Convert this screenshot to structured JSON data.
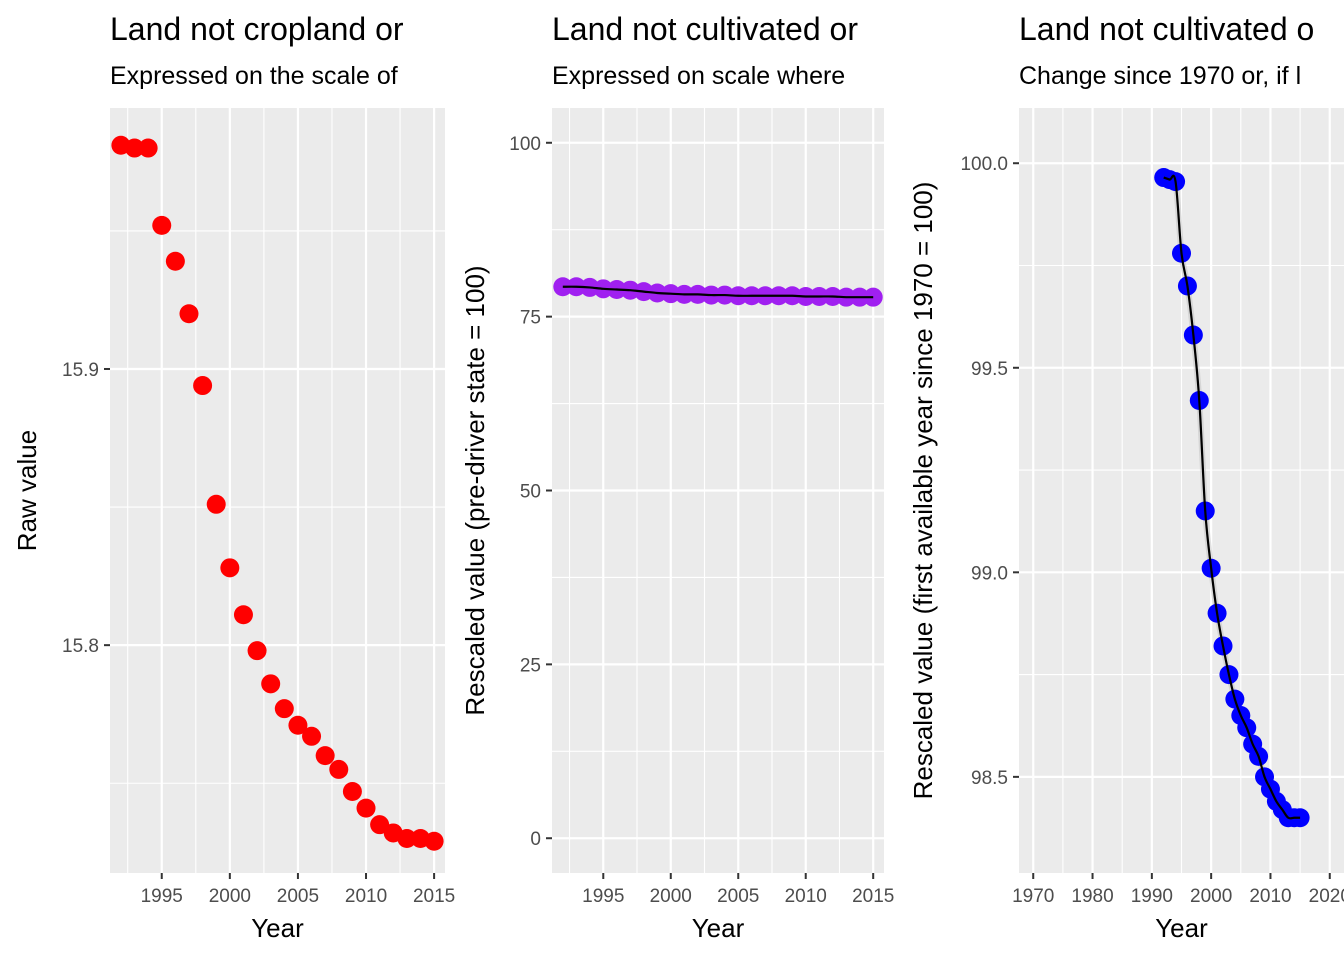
{
  "colors": {
    "panel_1_points": "#ff0000",
    "panel_2_points": "#a020f0",
    "panel_3_points": "#0000ff",
    "trend_line": "#000000",
    "ribbon": "#bdbdbd",
    "panel_background": "#ebebeb",
    "gridline": "#ffffff"
  },
  "chart_data": [
    {
      "type": "scatter",
      "title": "Land not cropland or",
      "subtitle": "Expressed on the scale of",
      "xlabel": "Year",
      "ylabel": "Raw value",
      "xlim": [
        1991.2,
        2015.8
      ],
      "ylim": [
        15.7175,
        15.9945
      ],
      "x_ticks": [
        1995,
        2000,
        2005,
        2010,
        2015
      ],
      "x_tick_labels": [
        "1995",
        "2000",
        "2005",
        "2010",
        "2015"
      ],
      "y_ticks": [
        15.8,
        15.9
      ],
      "y_tick_labels": [
        "15.8",
        "15.9"
      ],
      "grid": true,
      "trend_line": false,
      "series": [
        {
          "x": [
            1992,
            1993,
            1994,
            1995,
            1996,
            1997,
            1998,
            1999,
            2000,
            2001,
            2002,
            2003,
            2004,
            2005,
            2006,
            2007,
            2008,
            2009,
            2010,
            2011,
            2012,
            2013,
            2014,
            2015
          ],
          "y": [
            15.981,
            15.98,
            15.98,
            15.952,
            15.939,
            15.92,
            15.894,
            15.851,
            15.828,
            15.811,
            15.798,
            15.786,
            15.777,
            15.771,
            15.767,
            15.76,
            15.755,
            15.747,
            15.741,
            15.735,
            15.732,
            15.73,
            15.73,
            15.729
          ]
        }
      ]
    },
    {
      "type": "scatter",
      "title": "Land not cultivated or",
      "subtitle": "Expressed on scale where",
      "xlabel": "Year",
      "ylabel": "Rescaled value (pre-driver state = 100)",
      "xlim": [
        1991.2,
        2015.8
      ],
      "ylim": [
        -5,
        105
      ],
      "x_ticks": [
        1995,
        2000,
        2005,
        2010,
        2015
      ],
      "x_tick_labels": [
        "1995",
        "2000",
        "2005",
        "2010",
        "2015"
      ],
      "y_ticks": [
        0,
        25,
        50,
        75,
        100
      ],
      "y_tick_labels": [
        "0",
        "25",
        "50",
        "75",
        "100"
      ],
      "grid": true,
      "trend_line": true,
      "series": [
        {
          "x": [
            1992,
            1993,
            1994,
            1995,
            1996,
            1997,
            1998,
            1999,
            2000,
            2001,
            2002,
            2003,
            2004,
            2005,
            2006,
            2007,
            2008,
            2009,
            2010,
            2011,
            2012,
            2013,
            2014,
            2015
          ],
          "y": [
            79.3,
            79.3,
            79.2,
            79.0,
            78.9,
            78.8,
            78.6,
            78.4,
            78.3,
            78.2,
            78.2,
            78.1,
            78.1,
            78.0,
            78.0,
            78.0,
            78.0,
            78.0,
            77.9,
            77.9,
            77.9,
            77.8,
            77.8,
            77.8
          ]
        }
      ]
    },
    {
      "type": "scatter",
      "title": "Land not cultivated o",
      "subtitle": "Change since 1970 or, if l",
      "xlabel": "Year",
      "ylabel": "Rescaled value (first available year since 1970 = 100)",
      "xlim": [
        1967.6,
        2022.4
      ],
      "ylim": [
        98.265,
        100.135
      ],
      "x_ticks": [
        1970,
        1980,
        1990,
        2000,
        2010,
        2020
      ],
      "x_tick_labels": [
        "1970",
        "1980",
        "1990",
        "2000",
        "2010",
        "2020"
      ],
      "y_ticks": [
        98.5,
        99.0,
        99.5,
        100.0
      ],
      "y_tick_labels": [
        "98.5",
        "99.0",
        "99.5",
        "100.0"
      ],
      "grid": true,
      "trend_line": true,
      "series": [
        {
          "x": [
            1992,
            1993,
            1994,
            1995,
            1996,
            1997,
            1998,
            1999,
            2000,
            2001,
            2002,
            2003,
            2004,
            2005,
            2006,
            2007,
            2008,
            2009,
            2010,
            2011,
            2012,
            2013,
            2014,
            2015
          ],
          "y": [
            99.965,
            99.96,
            99.955,
            99.78,
            99.7,
            99.58,
            99.42,
            99.15,
            99.01,
            98.9,
            98.82,
            98.75,
            98.69,
            98.65,
            98.62,
            98.58,
            98.55,
            98.5,
            98.47,
            98.44,
            98.42,
            98.4,
            98.4,
            98.4
          ]
        }
      ]
    }
  ]
}
